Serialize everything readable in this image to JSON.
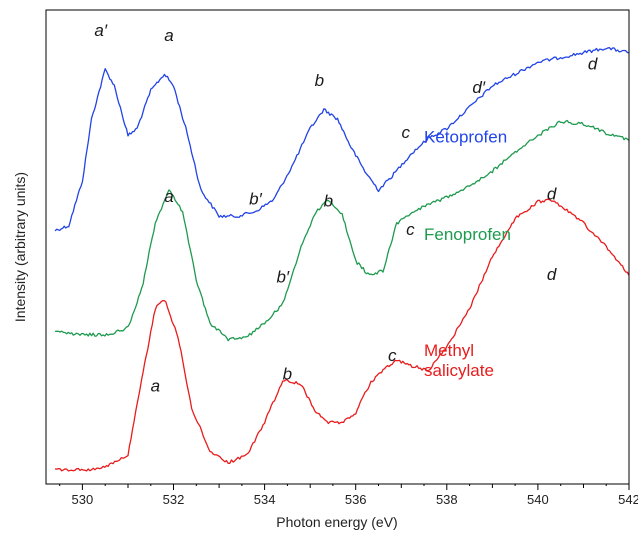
{
  "chart_data": {
    "type": "line",
    "xlabel": "Photon energy (eV)",
    "ylabel": "Intensity (arbitrary units)",
    "xlim": [
      529.2,
      542
    ],
    "ylim": [
      0,
      100
    ],
    "x_ticks": [
      "530",
      "532",
      "534",
      "536",
      "538",
      "540",
      "542"
    ],
    "x_tick_values": [
      530,
      532,
      534,
      536,
      538,
      540,
      542
    ],
    "grid": false,
    "series": [
      {
        "name": "Ketoprofen",
        "color": "#2244e6",
        "x": [
          529.4,
          529.7,
          530.0,
          530.2,
          530.5,
          530.7,
          531.0,
          531.2,
          531.5,
          531.8,
          532.0,
          532.3,
          532.6,
          533.0,
          533.4,
          533.8,
          534.2,
          534.6,
          535.0,
          535.3,
          535.6,
          535.9,
          536.2,
          536.5,
          536.8,
          537.2,
          537.6,
          538.0,
          538.5,
          539.0,
          539.5,
          540.0,
          540.5,
          541.0,
          541.5,
          542.0
        ],
        "values": [
          53.5,
          54.5,
          64,
          77,
          87.5,
          84,
          73.5,
          75,
          83,
          86.5,
          84,
          74,
          62,
          56.5,
          56.5,
          57.5,
          60,
          67,
          75,
          79,
          77,
          71,
          66,
          62,
          65,
          69.5,
          73,
          75,
          79.5,
          84,
          86.5,
          89,
          90,
          91,
          92,
          91
        ]
      },
      {
        "name": "Fenoprofen",
        "color": "#1e9a4e",
        "x": [
          529.4,
          529.8,
          530.2,
          530.6,
          531.0,
          531.3,
          531.6,
          531.9,
          532.2,
          532.5,
          532.8,
          533.2,
          533.6,
          534.0,
          534.4,
          534.8,
          535.1,
          535.4,
          535.7,
          536.0,
          536.3,
          536.6,
          536.9,
          537.2,
          537.6,
          538.0,
          538.5,
          539.0,
          539.5,
          540.0,
          540.5,
          541.0,
          541.5,
          542.0
        ],
        "values": [
          32.5,
          31.5,
          31.5,
          31.5,
          33,
          41,
          55,
          62,
          57.5,
          43,
          34,
          30.5,
          31,
          34,
          38,
          50,
          57,
          60,
          57,
          47,
          44,
          45,
          55,
          57,
          59,
          60.5,
          63,
          66,
          70,
          73.5,
          76.5,
          76,
          74,
          72.5
        ]
      },
      {
        "name": "Methyl\nsalicylate",
        "color": "#e81c1c",
        "x": [
          529.4,
          529.8,
          530.2,
          530.6,
          531.0,
          531.3,
          531.6,
          531.8,
          532.1,
          532.4,
          532.8,
          533.2,
          533.6,
          534.0,
          534.4,
          534.8,
          535.1,
          535.4,
          535.7,
          536.0,
          536.3,
          536.6,
          536.9,
          537.2,
          537.6,
          538.0,
          538.5,
          539.0,
          539.5,
          540.0,
          540.3,
          540.6,
          541.0,
          541.5,
          542.0
        ],
        "values": [
          3,
          3,
          3,
          4,
          6,
          22,
          37,
          39,
          31,
          16,
          7,
          4.5,
          6,
          13,
          22,
          21,
          15.5,
          13,
          13,
          15,
          21,
          24,
          26,
          25,
          24,
          29,
          37,
          48,
          56,
          59.5,
          60,
          58,
          55,
          50,
          44
        ]
      }
    ],
    "annotations": [
      {
        "text": "a′",
        "x": 530.4,
        "y": 94.5
      },
      {
        "text": "a",
        "x": 531.9,
        "y": 93.5
      },
      {
        "text": "b",
        "x": 535.2,
        "y": 84
      },
      {
        "text": "c",
        "x": 537.1,
        "y": 73
      },
      {
        "text": "d′",
        "x": 538.7,
        "y": 82.5
      },
      {
        "text": "d",
        "x": 541.2,
        "y": 87.5
      },
      {
        "text": "b′",
        "x": 533.8,
        "y": 59
      },
      {
        "text": "a",
        "x": 531.9,
        "y": 59.5
      },
      {
        "text": "b",
        "x": 535.4,
        "y": 58.5
      },
      {
        "text": "c",
        "x": 537.2,
        "y": 52.5
      },
      {
        "text": "d",
        "x": 540.3,
        "y": 60
      },
      {
        "text": "b′",
        "x": 534.4,
        "y": 42.5
      },
      {
        "text": "a",
        "x": 531.6,
        "y": 19.5
      },
      {
        "text": "b",
        "x": 534.5,
        "y": 22
      },
      {
        "text": "c",
        "x": 536.8,
        "y": 26
      },
      {
        "text": "d",
        "x": 540.3,
        "y": 43
      }
    ],
    "series_labels": [
      {
        "series": 0,
        "lines": [
          "Ketoprofen"
        ],
        "x": 537.5,
        "y": 72,
        "color": "#2244e6"
      },
      {
        "series": 1,
        "lines": [
          "Fenoprofen"
        ],
        "x": 537.5,
        "y": 51.5,
        "color": "#1e9a4e"
      },
      {
        "series": 2,
        "lines": [
          "Methyl",
          "salicylate"
        ],
        "x": 537.5,
        "y": 27,
        "color": "#e81c1c"
      }
    ]
  }
}
